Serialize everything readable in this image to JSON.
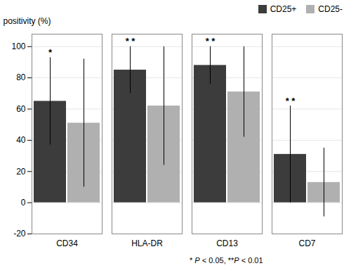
{
  "chart_data": {
    "type": "bar",
    "ylabel": "positivity (%)",
    "categories": [
      "CD34",
      "HLA-DR",
      "CD13",
      "CD7"
    ],
    "series": [
      {
        "name": "CD25+",
        "color": "#3c3c3c",
        "values": [
          65,
          85,
          88,
          31
        ],
        "errors": [
          28,
          15,
          12,
          31
        ],
        "annotations": [
          "*",
          "* *",
          "* *",
          "* *"
        ]
      },
      {
        "name": "CD25-",
        "color": "#b0b0b0",
        "values": [
          51,
          62,
          71,
          13
        ],
        "errors": [
          41,
          38,
          29,
          22
        ]
      }
    ],
    "footnote": [
      "* ",
      "P",
      " < 0.05, **",
      "P",
      " < 0.01"
    ],
    "ylim": [
      -20,
      108
    ],
    "yticks": [
      -20,
      0,
      20,
      40,
      60,
      80,
      100
    ],
    "grid": true,
    "legend": "upper right"
  }
}
